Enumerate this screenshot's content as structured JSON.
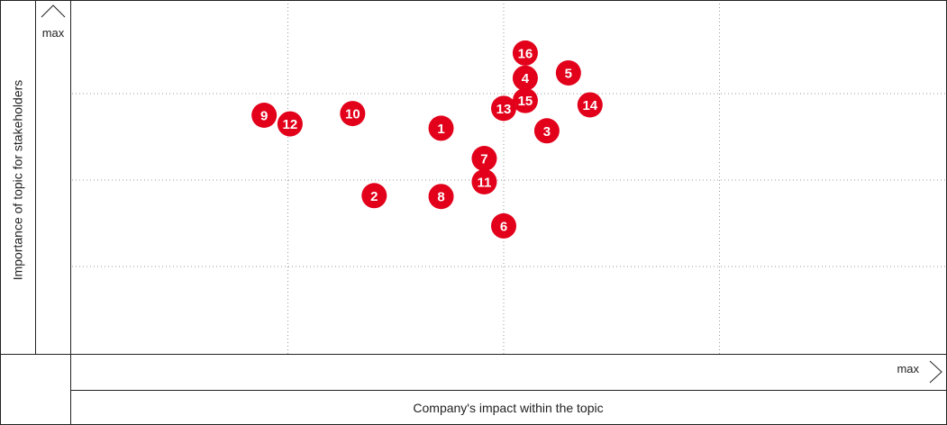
{
  "chart_data": {
    "type": "scatter",
    "xlabel": "Company's impact within the topic",
    "ylabel": "Importance of topic for stakeholders",
    "x_max_label": "max",
    "y_max_label": "max",
    "xlim": [
      0,
      4
    ],
    "ylim": [
      0,
      4
    ],
    "grid": true,
    "marker_color": "#e2001a",
    "points": [
      {
        "label": "1",
        "x": 1.71,
        "y": 2.6
      },
      {
        "label": "2",
        "x": 1.4,
        "y": 1.82
      },
      {
        "label": "3",
        "x": 2.2,
        "y": 2.57
      },
      {
        "label": "4",
        "x": 2.1,
        "y": 3.18
      },
      {
        "label": "5",
        "x": 2.3,
        "y": 3.24
      },
      {
        "label": "6",
        "x": 2.0,
        "y": 1.47
      },
      {
        "label": "7",
        "x": 1.91,
        "y": 2.25
      },
      {
        "label": "8",
        "x": 1.71,
        "y": 1.81
      },
      {
        "label": "9",
        "x": 0.89,
        "y": 2.75
      },
      {
        "label": "10",
        "x": 1.3,
        "y": 2.77
      },
      {
        "label": "11",
        "x": 1.91,
        "y": 1.98
      },
      {
        "label": "12",
        "x": 1.01,
        "y": 2.65
      },
      {
        "label": "13",
        "x": 2.0,
        "y": 2.83
      },
      {
        "label": "14",
        "x": 2.4,
        "y": 2.87
      },
      {
        "label": "15",
        "x": 2.1,
        "y": 2.92
      },
      {
        "label": "16",
        "x": 2.1,
        "y": 3.47
      }
    ]
  }
}
